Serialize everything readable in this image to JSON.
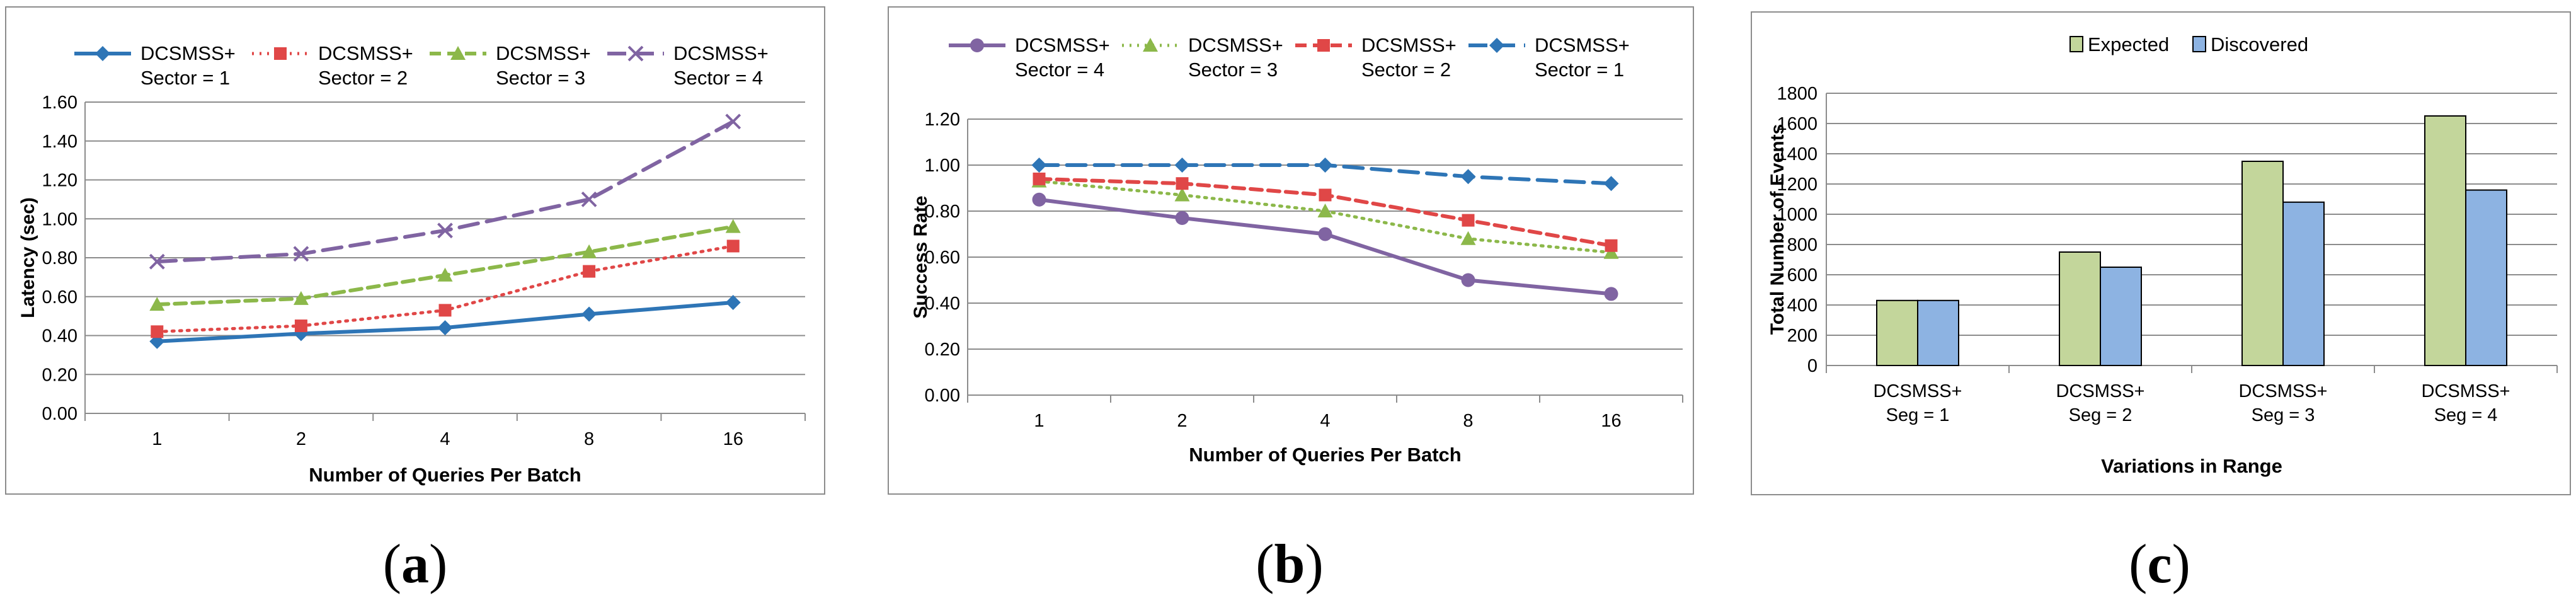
{
  "captions": [
    "a",
    "b",
    "c"
  ],
  "chart_data": [
    {
      "type": "line",
      "xlabel": "Number of Queries Per Batch",
      "ylabel": "Latency (sec)",
      "categories": [
        "1",
        "2",
        "4",
        "8",
        "16"
      ],
      "ylim": [
        0,
        1.6
      ],
      "yticks": [
        "0.00",
        "0.20",
        "0.40",
        "0.60",
        "0.80",
        "1.00",
        "1.20",
        "1.40",
        "1.60"
      ],
      "grid": true,
      "legend_position": "top",
      "series": [
        {
          "name_line1": "DCSMSS+",
          "name_line2": "Sector = 1",
          "values": [
            0.37,
            0.41,
            0.44,
            0.51,
            0.57
          ],
          "color": "#2e75b6",
          "dash": "solid",
          "marker": "diamond"
        },
        {
          "name_line1": "DCSMSS+",
          "name_line2": "Sector = 2",
          "values": [
            0.42,
            0.45,
            0.53,
            0.73,
            0.86
          ],
          "color": "#e04747",
          "dash": "dot",
          "marker": "square"
        },
        {
          "name_line1": "DCSMSS+",
          "name_line2": "Sector = 3",
          "values": [
            0.56,
            0.59,
            0.71,
            0.83,
            0.96
          ],
          "color": "#8cb84a",
          "dash": "dash",
          "marker": "triangle"
        },
        {
          "name_line1": "DCSMSS+",
          "name_line2": "Sector = 4",
          "values": [
            0.78,
            0.82,
            0.94,
            1.1,
            1.5
          ],
          "color": "#8064a2",
          "dash": "longdash",
          "marker": "x"
        }
      ]
    },
    {
      "type": "line",
      "xlabel": "Number of Queries Per Batch",
      "ylabel": "Success Rate",
      "categories": [
        "1",
        "2",
        "4",
        "8",
        "16"
      ],
      "ylim": [
        0,
        1.2
      ],
      "yticks": [
        "0.00",
        "0.20",
        "0.40",
        "0.60",
        "0.80",
        "1.00",
        "1.20"
      ],
      "grid": true,
      "legend_position": "top",
      "series": [
        {
          "name_line1": "DCSMSS+",
          "name_line2": "Sector = 4",
          "values": [
            0.85,
            0.77,
            0.7,
            0.5,
            0.44
          ],
          "color": "#8064a2",
          "dash": "solid",
          "marker": "circle"
        },
        {
          "name_line1": "DCSMSS+",
          "name_line2": "Sector = 3",
          "values": [
            0.93,
            0.87,
            0.8,
            0.68,
            0.62
          ],
          "color": "#8cb84a",
          "dash": "dot",
          "marker": "triangle"
        },
        {
          "name_line1": "DCSMSS+",
          "name_line2": "Sector = 2",
          "values": [
            0.94,
            0.92,
            0.87,
            0.76,
            0.65
          ],
          "color": "#e04747",
          "dash": "dash",
          "marker": "square"
        },
        {
          "name_line1": "DCSMSS+",
          "name_line2": "Sector = 1",
          "values": [
            1.0,
            1.0,
            1.0,
            0.95,
            0.92
          ],
          "color": "#2e75b6",
          "dash": "longdash",
          "marker": "diamond"
        }
      ]
    },
    {
      "type": "bar",
      "xlabel": "Variations in Range",
      "ylabel": "Total Number of Events",
      "categories": [
        [
          "DCSMSS+",
          "Seg = 1"
        ],
        [
          "DCSMSS+",
          "Seg = 2"
        ],
        [
          "DCSMSS+",
          "Seg = 3"
        ],
        [
          "DCSMSS+",
          "Seg = 4"
        ]
      ],
      "ylim": [
        0,
        1800
      ],
      "yticks": [
        "0",
        "200",
        "400",
        "600",
        "800",
        "1000",
        "1200",
        "1400",
        "1600",
        "1800"
      ],
      "grid": true,
      "legend_position": "top",
      "series": [
        {
          "name": "Expected",
          "values": [
            430,
            750,
            1350,
            1650
          ],
          "color": "#c3d69b"
        },
        {
          "name": "Discovered",
          "values": [
            430,
            650,
            1080,
            1160
          ],
          "color": "#8db3e2"
        }
      ]
    }
  ]
}
